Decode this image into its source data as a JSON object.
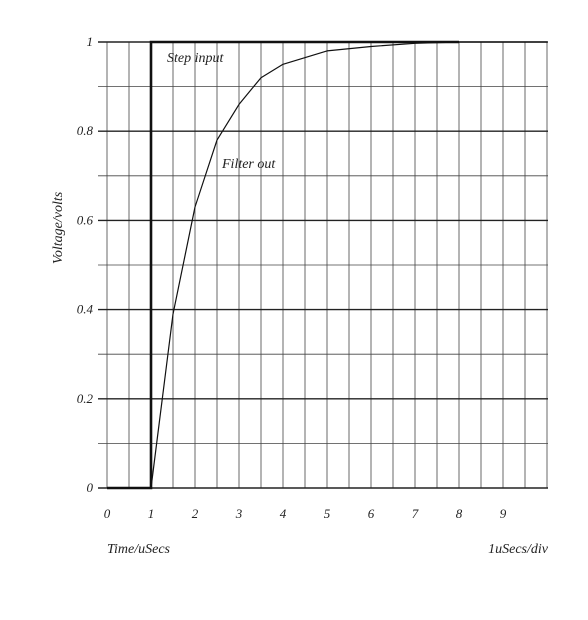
{
  "chart_data": {
    "type": "line",
    "xlabel": "Time/uSecs",
    "ylabel": "Voltage/volts",
    "scale_note": "1uSecs/div",
    "xlim": [
      0,
      10
    ],
    "ylim": [
      0,
      1
    ],
    "x_ticks": [
      "0",
      "1",
      "2",
      "3",
      "4",
      "5",
      "6",
      "7",
      "8",
      "9"
    ],
    "y_ticks": [
      "0",
      "0.2",
      "0.4",
      "0.6",
      "0.8",
      "1"
    ],
    "grid": true,
    "series": [
      {
        "name": "Step input",
        "x": [
          0,
          1,
          1,
          8
        ],
        "y": [
          0,
          0,
          1,
          1
        ]
      },
      {
        "name": "Filter out",
        "x": [
          0,
          1,
          1.5,
          2,
          2.5,
          3,
          3.5,
          4,
          5,
          6,
          7,
          8,
          9,
          10
        ],
        "y": [
          0,
          0,
          0.39,
          0.63,
          0.78,
          0.86,
          0.92,
          0.95,
          0.98,
          0.99,
          0.997,
          1.0,
          1.0,
          1.0
        ]
      }
    ]
  }
}
